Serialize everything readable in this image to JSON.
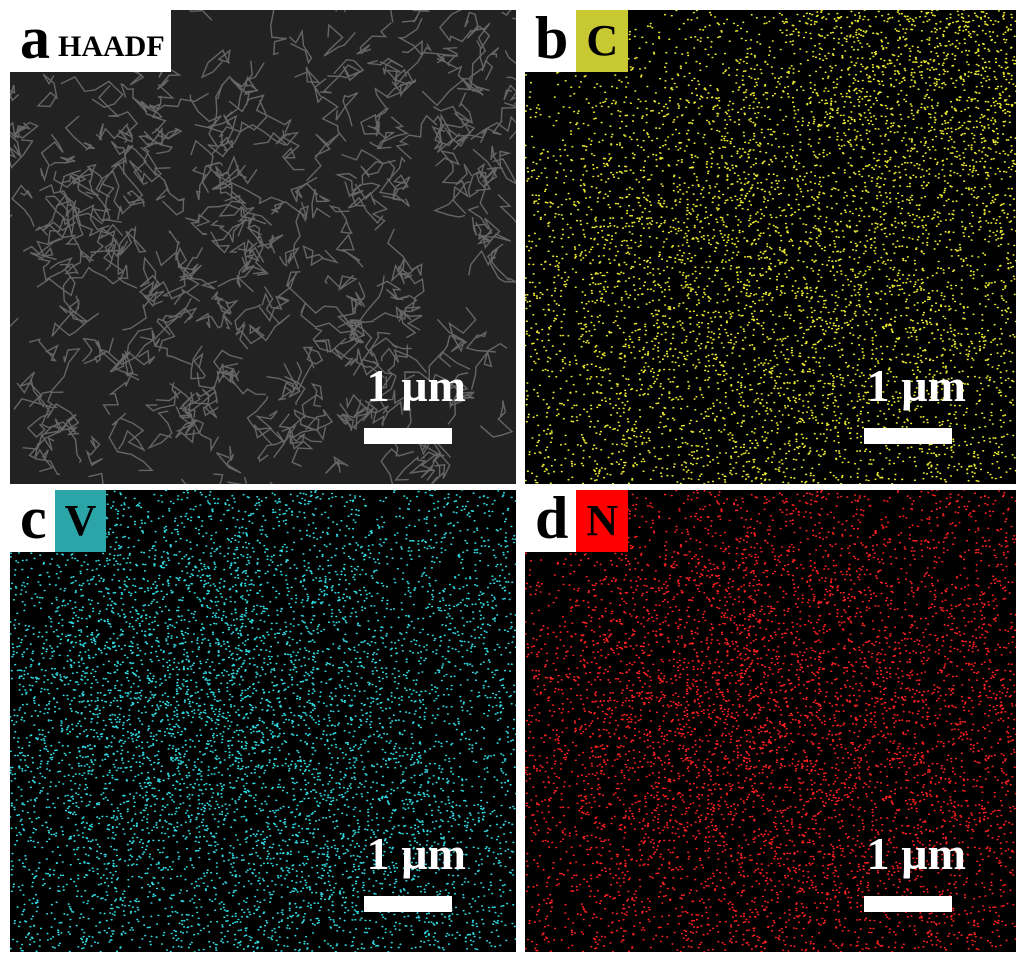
{
  "panels": [
    {
      "letter": "a",
      "label": "HAADF",
      "scale_bar": "1 µm"
    },
    {
      "letter": "b",
      "label": "C",
      "scale_bar": "1 µm"
    },
    {
      "letter": "c",
      "label": "V",
      "scale_bar": "1 µm"
    },
    {
      "letter": "d",
      "label": "N",
      "scale_bar": "1 µm"
    }
  ]
}
